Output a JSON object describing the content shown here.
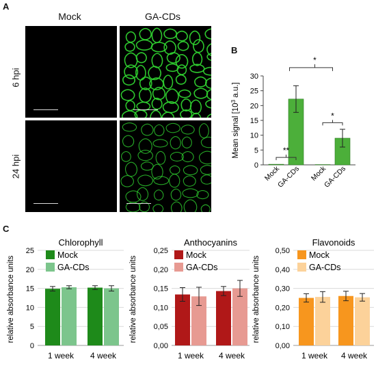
{
  "panel_a": {
    "letter": "A",
    "col_labels": [
      "Mock",
      "GA-CDs"
    ],
    "row_labels": [
      "6 hpi",
      "24 hpi"
    ]
  },
  "panel_b": {
    "letter": "B",
    "sig_labels": [
      "**",
      "*",
      "*"
    ]
  },
  "panel_c": {
    "letter": "C"
  },
  "colors": {
    "bar_b": "#4caf3a",
    "chlorophyll_mock": "#1e8a1a",
    "chlorophyll_ga": "#7cc58c",
    "anthocyanins_mock": "#b01818",
    "anthocyanins_ga": "#e79a92",
    "flavonoids_mock": "#f7961e",
    "flavonoids_ga": "#fcd29a",
    "fluorescence": "#2fd12f"
  },
  "chart_data": [
    {
      "type": "bar",
      "title": "",
      "ylabel": "Mean signal [10³ a.u.]",
      "ylim": [
        0,
        30
      ],
      "yticks": [
        "0",
        "5",
        "10",
        "15",
        "20",
        "25",
        "30"
      ],
      "categories": [
        "Mock",
        "GA-CDs",
        "Mock",
        "GA-CDs"
      ],
      "values": [
        0.2,
        22.2,
        0.1,
        9.0
      ],
      "errors": [
        0.1,
        4.5,
        0.1,
        3.0
      ]
    },
    {
      "type": "bar",
      "title": "Chlorophyll",
      "ylabel": "relative absorbance units",
      "ylim": [
        0,
        25
      ],
      "yticks": [
        "0",
        "5",
        "10",
        "15",
        "20",
        "25"
      ],
      "categories": [
        "1 week",
        "4 week"
      ],
      "series": [
        {
          "name": "Mock",
          "values": [
            14.9,
            15.2
          ],
          "errors": [
            0.6,
            0.5
          ]
        },
        {
          "name": "GA-CDs",
          "values": [
            15.3,
            15.0
          ],
          "errors": [
            0.4,
            0.7
          ]
        }
      ]
    },
    {
      "type": "bar",
      "title": "Anthocyanins",
      "ylabel": "relative absorbance units",
      "ylim": [
        0,
        0.25
      ],
      "yticks": [
        "0,00",
        "0,05",
        "0,10",
        "0,15",
        "0,20",
        "0,25"
      ],
      "categories": [
        "1 week",
        "4 week"
      ],
      "series": [
        {
          "name": "Mock",
          "values": [
            0.134,
            0.143
          ],
          "errors": [
            0.018,
            0.012
          ]
        },
        {
          "name": "GA-CDs",
          "values": [
            0.129,
            0.15
          ],
          "errors": [
            0.024,
            0.021
          ]
        }
      ]
    },
    {
      "type": "bar",
      "title": "Flavonoids",
      "ylabel": "relative absorbance units",
      "ylim": [
        0,
        0.5
      ],
      "yticks": [
        "0,00",
        "0,10",
        "0,20",
        "0,30",
        "0,40",
        "0,50"
      ],
      "categories": [
        "1 week",
        "4 week"
      ],
      "series": [
        {
          "name": "Mock",
          "values": [
            0.25,
            0.26
          ],
          "errors": [
            0.022,
            0.025
          ]
        },
        {
          "name": "GA-CDs",
          "values": [
            0.255,
            0.253
          ],
          "errors": [
            0.028,
            0.02
          ]
        }
      ]
    }
  ]
}
